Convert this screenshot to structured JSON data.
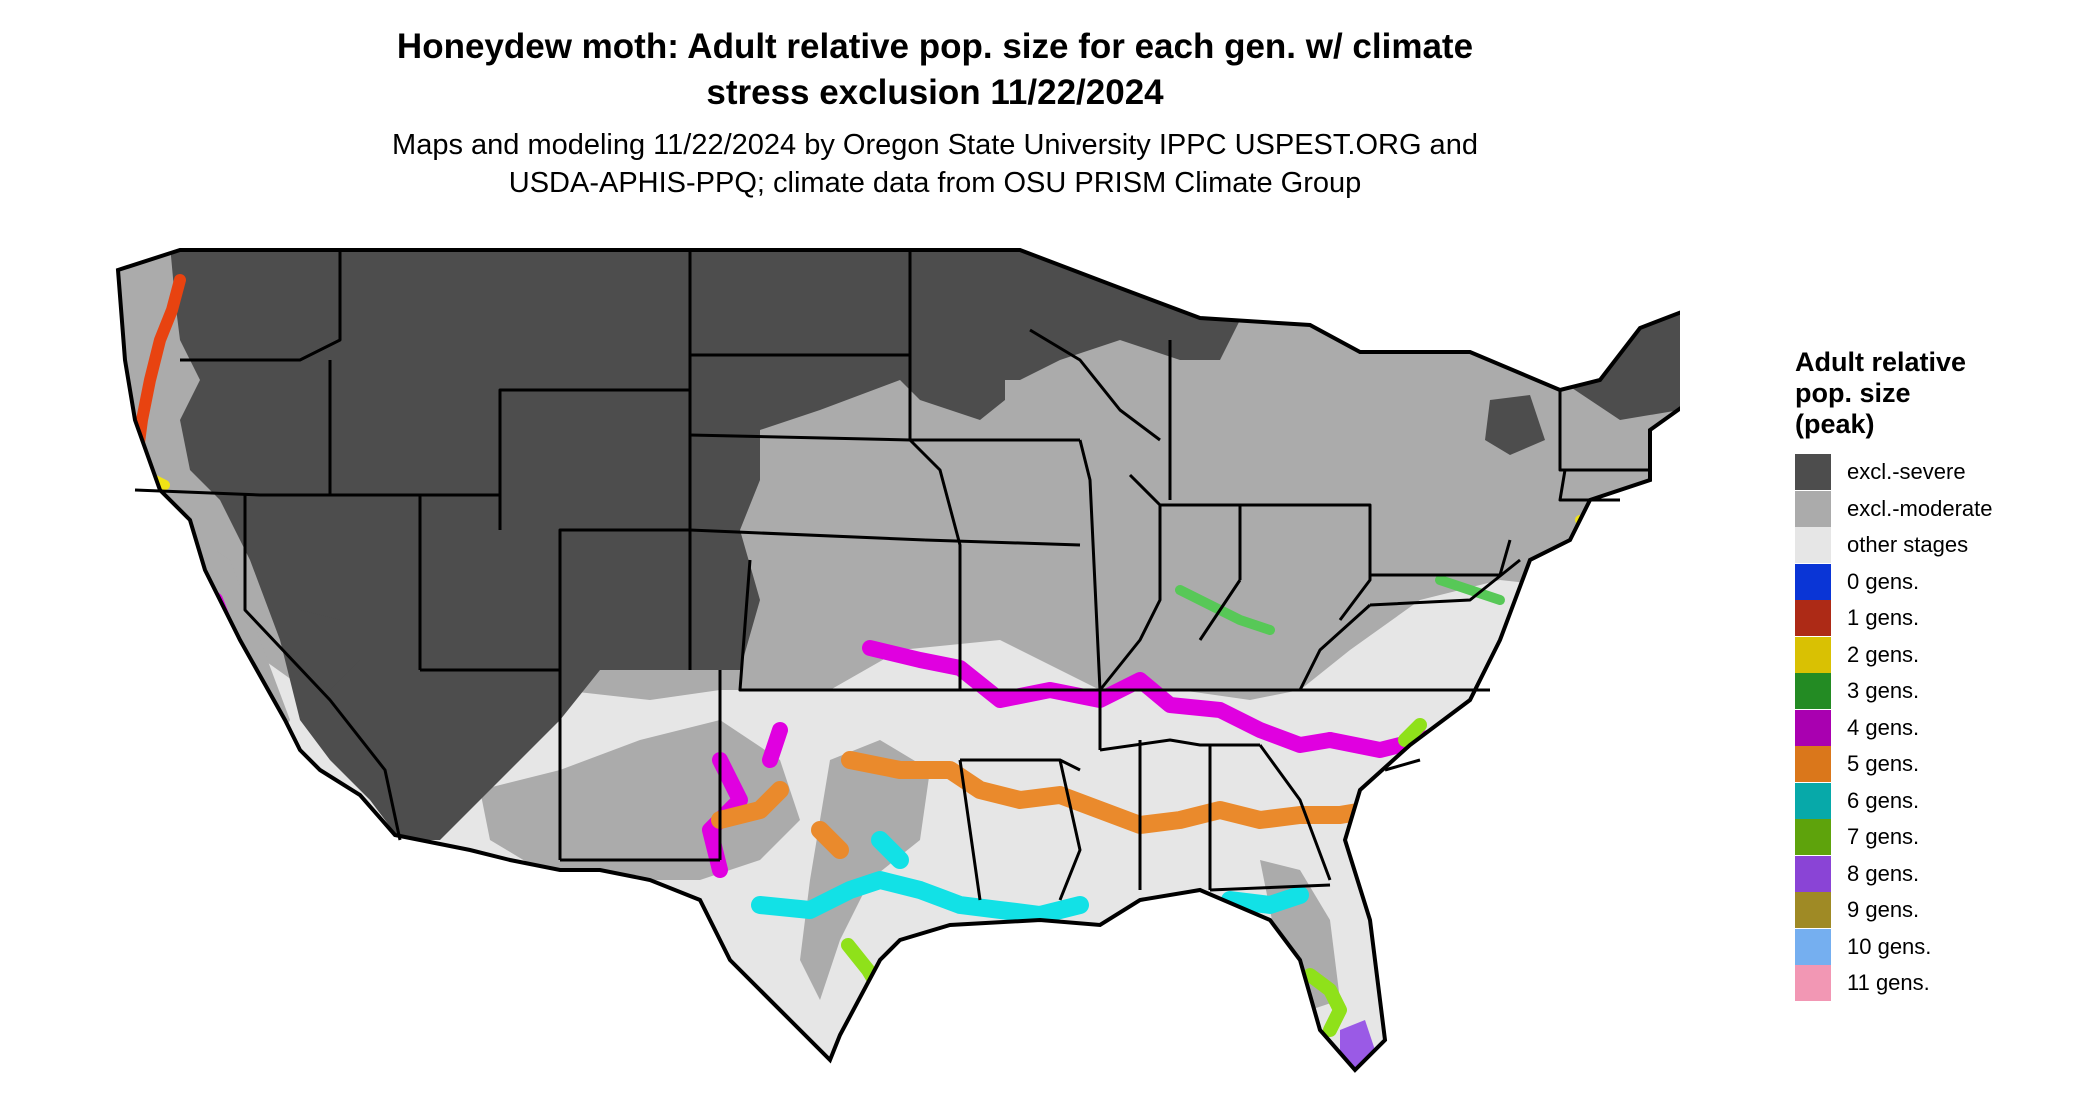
{
  "title": {
    "line1": "Honeydew moth: Adult relative pop. size for each gen. w/ climate",
    "line2": "stress exclusion 11/22/2024"
  },
  "subtitle": {
    "line1": "Maps and modeling 11/22/2024 by Oregon State University IPPC USPEST.ORG and",
    "line2": "USDA-APHIS-PPQ; climate data from OSU PRISM Climate Group"
  },
  "legend": {
    "title_line1": "Adult relative",
    "title_line2": "pop. size",
    "title_line3": "(peak)",
    "items": [
      {
        "label": "excl.-severe",
        "color": "#4d4d4d"
      },
      {
        "label": "excl.-moderate",
        "color": "#ababab"
      },
      {
        "label": "other stages",
        "color": "#e6e6e6"
      },
      {
        "label": "0 gens.",
        "color": "#0a35d6"
      },
      {
        "label": "1 gens.",
        "color": "#ad2a16"
      },
      {
        "label": "2 gens.",
        "color": "#d9c103"
      },
      {
        "label": "3 gens.",
        "color": "#238b23"
      },
      {
        "label": "4 gens.",
        "color": "#a900b0"
      },
      {
        "label": "5 gens.",
        "color": "#da771b"
      },
      {
        "label": "6 gens.",
        "color": "#07a9a9"
      },
      {
        "label": "7 gens.",
        "color": "#5ea30c"
      },
      {
        "label": "8 gens.",
        "color": "#8a44d6"
      },
      {
        "label": "9 gens.",
        "color": "#9f8a25"
      },
      {
        "label": "10 gens.",
        "color": "#75aff0"
      },
      {
        "label": "11 gens.",
        "color": "#f297b4"
      }
    ]
  },
  "map_colors": {
    "border": "#000000",
    "excl_severe": "#4d4d4d",
    "excl_moderate": "#ababab",
    "other_stages": "#e6e6e6",
    "band_magenta": "#e000e0",
    "band_orange": "#ea8a2c",
    "band_cyan": "#12e1e6",
    "band_lime": "#8fe11a",
    "band_red": "#e84310",
    "band_yellow": "#f0e316",
    "band_violet": "#9a5ae6",
    "band_green": "#57c857"
  }
}
